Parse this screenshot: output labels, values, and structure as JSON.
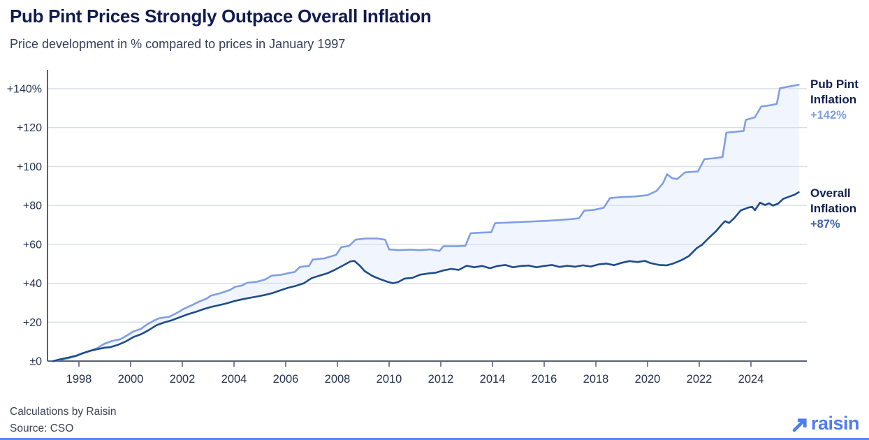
{
  "header": {
    "title": "Pub Pint Prices Strongly Outpace Overall Inflation",
    "subtitle": "Price development in % compared to prices in January 1997"
  },
  "footer": {
    "line1": "Calculations by Raisin",
    "line2": "Source: CSO",
    "logo_text": "raisin"
  },
  "colors": {
    "title": "#111c4e",
    "subtitle": "#333e57",
    "axis_line": "#5a6170",
    "gridline": "#d9dde4",
    "tick_label": "#26324e",
    "pub_line": "#7e9fe3",
    "overall_line": "#1e4c8a",
    "band_fill": "#edf3fc",
    "pub_value_label": "#7e9fe3",
    "overall_value_label": "#4062ab",
    "logo_blue": "#4d7cf2",
    "bottom_bar": "#5d88f0"
  },
  "chart_data": {
    "type": "line",
    "title": "Pub Pint Prices Strongly Outpace Overall Inflation",
    "subtitle": "Price development in % compared to prices in January 1997",
    "xlabel": "",
    "ylabel": "",
    "xlim": [
      1997,
      2026
    ],
    "ylim": [
      0,
      145
    ],
    "grid": true,
    "legend_position": "right",
    "x_ticks": [
      {
        "label": "1998",
        "value": 1998
      },
      {
        "label": "2000",
        "value": 2000
      },
      {
        "label": "2002",
        "value": 2002
      },
      {
        "label": "2004",
        "value": 2004
      },
      {
        "label": "2006",
        "value": 2006
      },
      {
        "label": "2008",
        "value": 2008
      },
      {
        "label": "2010",
        "value": 2010
      },
      {
        "label": "2012",
        "value": 2012
      },
      {
        "label": "2014",
        "value": 2014
      },
      {
        "label": "2016",
        "value": 2016
      },
      {
        "label": "2018",
        "value": 2018
      },
      {
        "label": "2020",
        "value": 2020
      },
      {
        "label": "2022",
        "value": 2022
      },
      {
        "label": "2024",
        "value": 2024
      }
    ],
    "y_ticks": [
      {
        "label": "±0",
        "value": 0
      },
      {
        "label": "+20",
        "value": 20
      },
      {
        "label": "+40",
        "value": 40
      },
      {
        "label": "+60",
        "value": 60
      },
      {
        "label": "+80",
        "value": 80
      },
      {
        "label": "+100",
        "value": 100
      },
      {
        "label": "+120",
        "value": 120
      },
      {
        "label": "+140%",
        "value": 140
      }
    ],
    "series": [
      {
        "name": "Pub Pint Inflation",
        "end_label": "+142%",
        "color": "#7e9fe3",
        "points": [
          [
            1997,
            0
          ],
          [
            1997.3,
            0.7
          ],
          [
            1997.6,
            1.5
          ],
          [
            1997.9,
            2.6
          ],
          [
            1998.1,
            3.8
          ],
          [
            1998.4,
            5.2
          ],
          [
            1998.7,
            6.6
          ],
          [
            1999,
            9
          ],
          [
            1999.3,
            10.4
          ],
          [
            1999.6,
            11.2
          ],
          [
            1999.9,
            13.5
          ],
          [
            2000.1,
            15.2
          ],
          [
            2000.4,
            16.6
          ],
          [
            2000.65,
            19
          ],
          [
            2000.9,
            20.8
          ],
          [
            2001.1,
            22
          ],
          [
            2001.5,
            22.8
          ],
          [
            2001.8,
            24.8
          ],
          [
            2002.05,
            26.8
          ],
          [
            2002.35,
            28.6
          ],
          [
            2002.65,
            30.6
          ],
          [
            2002.95,
            32.2
          ],
          [
            2003.1,
            33.6
          ],
          [
            2003.5,
            35
          ],
          [
            2003.85,
            36.6
          ],
          [
            2004.05,
            38.2
          ],
          [
            2004.3,
            38.8
          ],
          [
            2004.5,
            40.2
          ],
          [
            2004.9,
            40.8
          ],
          [
            2005.2,
            41.9
          ],
          [
            2005.45,
            43.9
          ],
          [
            2005.8,
            44.3
          ],
          [
            2006.1,
            45.2
          ],
          [
            2006.35,
            45.8
          ],
          [
            2006.55,
            48.4
          ],
          [
            2006.9,
            48.9
          ],
          [
            2007.05,
            52.2
          ],
          [
            2007.5,
            52.8
          ],
          [
            2007.95,
            54.6
          ],
          [
            2008.15,
            58.6
          ],
          [
            2008.45,
            59.2
          ],
          [
            2008.7,
            62.4
          ],
          [
            2009.1,
            63
          ],
          [
            2009.55,
            63
          ],
          [
            2009.85,
            62.4
          ],
          [
            2010,
            57.4
          ],
          [
            2010.4,
            57
          ],
          [
            2010.8,
            57.3
          ],
          [
            2011.2,
            57
          ],
          [
            2011.6,
            57.4
          ],
          [
            2011.95,
            56.6
          ],
          [
            2012.1,
            59
          ],
          [
            2012.55,
            59
          ],
          [
            2012.95,
            59.2
          ],
          [
            2013.15,
            65.7
          ],
          [
            2013.55,
            66
          ],
          [
            2013.95,
            66.2
          ],
          [
            2014.1,
            70.9
          ],
          [
            2014.6,
            71.2
          ],
          [
            2015.1,
            71.5
          ],
          [
            2015.6,
            71.8
          ],
          [
            2016.1,
            72.1
          ],
          [
            2016.6,
            72.5
          ],
          [
            2017.1,
            73
          ],
          [
            2017.35,
            73.4
          ],
          [
            2017.55,
            77.3
          ],
          [
            2017.95,
            77.8
          ],
          [
            2018.3,
            78.8
          ],
          [
            2018.55,
            83.8
          ],
          [
            2019,
            84.3
          ],
          [
            2019.5,
            84.6
          ],
          [
            2020,
            85.3
          ],
          [
            2020.35,
            87.5
          ],
          [
            2020.6,
            91.5
          ],
          [
            2020.75,
            96
          ],
          [
            2020.95,
            94
          ],
          [
            2021.15,
            93.6
          ],
          [
            2021.45,
            97
          ],
          [
            2021.95,
            97.5
          ],
          [
            2022.2,
            103.8
          ],
          [
            2022.6,
            104.3
          ],
          [
            2022.9,
            104.9
          ],
          [
            2023.05,
            117.4
          ],
          [
            2023.5,
            118
          ],
          [
            2023.72,
            118.3
          ],
          [
            2023.8,
            124
          ],
          [
            2024.15,
            125.3
          ],
          [
            2024.4,
            130.9
          ],
          [
            2024.8,
            131.6
          ],
          [
            2025,
            132.2
          ],
          [
            2025.12,
            140.2
          ],
          [
            2025.5,
            141.2
          ],
          [
            2025.85,
            142
          ]
        ]
      },
      {
        "name": "Overall Inflation",
        "end_label": "+87%",
        "color": "#1e4c8a",
        "points": [
          [
            1997,
            0
          ],
          [
            1997.3,
            1
          ],
          [
            1997.6,
            1.8
          ],
          [
            1997.9,
            2.8
          ],
          [
            1998.1,
            3.8
          ],
          [
            1998.4,
            5.1
          ],
          [
            1998.7,
            6.1
          ],
          [
            1999,
            6.9
          ],
          [
            1999.2,
            7.1
          ],
          [
            1999.5,
            8.3
          ],
          [
            1999.8,
            10
          ],
          [
            2000.1,
            12.3
          ],
          [
            2000.4,
            13.8
          ],
          [
            2000.7,
            15.9
          ],
          [
            2001,
            18.4
          ],
          [
            2001.3,
            19.9
          ],
          [
            2001.6,
            21
          ],
          [
            2001.9,
            22.5
          ],
          [
            2002.2,
            24
          ],
          [
            2002.5,
            25.2
          ],
          [
            2002.8,
            26.6
          ],
          [
            2003.1,
            27.8
          ],
          [
            2003.4,
            28.7
          ],
          [
            2003.7,
            29.6
          ],
          [
            2004,
            30.8
          ],
          [
            2004.3,
            31.7
          ],
          [
            2004.6,
            32.5
          ],
          [
            2004.9,
            33.2
          ],
          [
            2005.2,
            34
          ],
          [
            2005.5,
            35
          ],
          [
            2005.8,
            36.4
          ],
          [
            2006.1,
            37.7
          ],
          [
            2006.4,
            38.7
          ],
          [
            2006.7,
            40
          ],
          [
            2007,
            42.6
          ],
          [
            2007.3,
            43.9
          ],
          [
            2007.6,
            45.1
          ],
          [
            2007.9,
            46.9
          ],
          [
            2008.2,
            49
          ],
          [
            2008.5,
            51.2
          ],
          [
            2008.65,
            51.5
          ],
          [
            2008.85,
            49.3
          ],
          [
            2009.05,
            46.3
          ],
          [
            2009.35,
            43.8
          ],
          [
            2009.65,
            42.1
          ],
          [
            2009.95,
            40.7
          ],
          [
            2010.15,
            40
          ],
          [
            2010.35,
            40.6
          ],
          [
            2010.6,
            42.4
          ],
          [
            2010.9,
            42.8
          ],
          [
            2011.2,
            44.4
          ],
          [
            2011.5,
            45
          ],
          [
            2011.8,
            45.4
          ],
          [
            2012.1,
            46.6
          ],
          [
            2012.4,
            47.4
          ],
          [
            2012.7,
            46.9
          ],
          [
            2013,
            49
          ],
          [
            2013.3,
            48.2
          ],
          [
            2013.6,
            48.9
          ],
          [
            2013.9,
            47.7
          ],
          [
            2014.2,
            48.9
          ],
          [
            2014.5,
            49.4
          ],
          [
            2014.8,
            48.2
          ],
          [
            2015.1,
            48.9
          ],
          [
            2015.4,
            49.1
          ],
          [
            2015.7,
            48.2
          ],
          [
            2016,
            48.9
          ],
          [
            2016.3,
            49.4
          ],
          [
            2016.6,
            48.4
          ],
          [
            2016.9,
            49
          ],
          [
            2017.2,
            48.5
          ],
          [
            2017.5,
            49.2
          ],
          [
            2017.8,
            48.6
          ],
          [
            2018.1,
            49.7
          ],
          [
            2018.4,
            50.1
          ],
          [
            2018.7,
            49.3
          ],
          [
            2019,
            50.5
          ],
          [
            2019.3,
            51.4
          ],
          [
            2019.6,
            50.9
          ],
          [
            2019.9,
            51.5
          ],
          [
            2020.1,
            50.4
          ],
          [
            2020.45,
            49.4
          ],
          [
            2020.75,
            49.2
          ],
          [
            2021,
            50.2
          ],
          [
            2021.3,
            51.8
          ],
          [
            2021.6,
            54
          ],
          [
            2021.9,
            58
          ],
          [
            2022.1,
            59.7
          ],
          [
            2022.35,
            63
          ],
          [
            2022.65,
            66.8
          ],
          [
            2022.9,
            70.6
          ],
          [
            2023,
            71.9
          ],
          [
            2023.15,
            71
          ],
          [
            2023.35,
            73.4
          ],
          [
            2023.6,
            77.4
          ],
          [
            2023.9,
            78.9
          ],
          [
            2024.05,
            79.3
          ],
          [
            2024.15,
            77.5
          ],
          [
            2024.35,
            81.4
          ],
          [
            2024.55,
            80.2
          ],
          [
            2024.7,
            81.1
          ],
          [
            2024.85,
            79.9
          ],
          [
            2025.05,
            80.9
          ],
          [
            2025.25,
            83.4
          ],
          [
            2025.5,
            84.6
          ],
          [
            2025.7,
            85.6
          ],
          [
            2025.85,
            86.8
          ]
        ]
      }
    ]
  }
}
